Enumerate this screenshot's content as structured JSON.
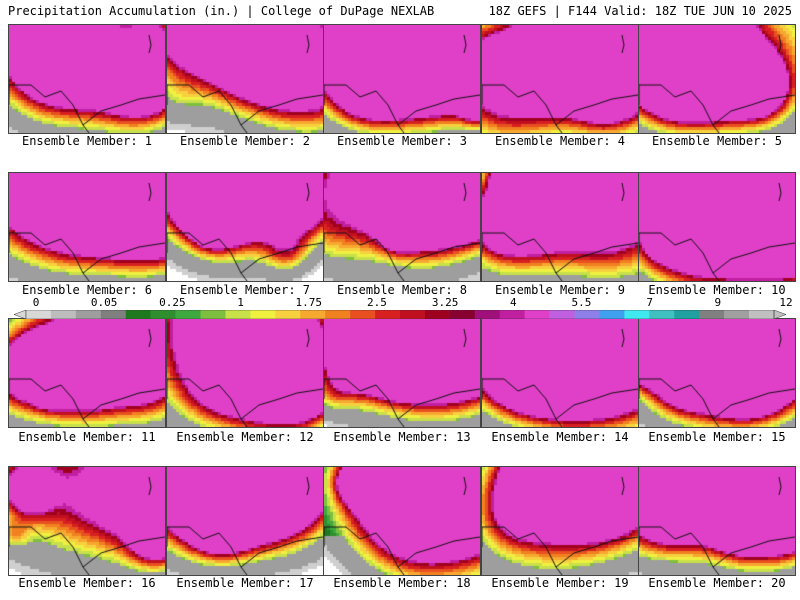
{
  "header": {
    "left_title": "Precipitation Accumulation (in.) | College of DuPage NEXLAB",
    "right_title": "18Z GEFS | F144 Valid: 18Z TUE JUN 10 2025"
  },
  "member_label_prefix": "Ensemble Member: ",
  "members": [
    {
      "id": "1",
      "label": "Ensemble Member: 1",
      "intensity": 0.55
    },
    {
      "id": "2",
      "label": "Ensemble Member: 2",
      "intensity": 0.4
    },
    {
      "id": "3",
      "label": "Ensemble Member: 3",
      "intensity": 0.8
    },
    {
      "id": "4",
      "label": "Ensemble Member: 4",
      "intensity": 0.7
    },
    {
      "id": "5",
      "label": "Ensemble Member: 5",
      "intensity": 0.75
    },
    {
      "id": "6",
      "label": "Ensemble Member: 6",
      "intensity": 0.8
    },
    {
      "id": "7",
      "label": "Ensemble Member: 7",
      "intensity": 0.5
    },
    {
      "id": "8",
      "label": "Ensemble Member: 8",
      "intensity": 0.78
    },
    {
      "id": "9",
      "label": "Ensemble Member: 9",
      "intensity": 0.78
    },
    {
      "id": "10",
      "label": "Ensemble Member: 10",
      "intensity": 0.8
    },
    {
      "id": "11",
      "label": "Ensemble Member: 11",
      "intensity": 0.6
    },
    {
      "id": "12",
      "label": "Ensemble Member: 12",
      "intensity": 0.68
    },
    {
      "id": "13",
      "label": "Ensemble Member: 13",
      "intensity": 0.7
    },
    {
      "id": "14",
      "label": "Ensemble Member: 14",
      "intensity": 0.62
    },
    {
      "id": "15",
      "label": "Ensemble Member: 15",
      "intensity": 0.9
    },
    {
      "id": "16",
      "label": "Ensemble Member: 16",
      "intensity": 0.62
    },
    {
      "id": "17",
      "label": "Ensemble Member: 17",
      "intensity": 0.55
    },
    {
      "id": "18",
      "label": "Ensemble Member: 18",
      "intensity": 0.55
    },
    {
      "id": "19",
      "label": "Ensemble Member: 19",
      "intensity": 0.5
    },
    {
      "id": "20",
      "label": "Ensemble Member: 20",
      "intensity": 0.65
    }
  ],
  "colorbar": {
    "tick_labels": [
      "0",
      "0.05",
      "0.25",
      "1",
      "1.75",
      "2.5",
      "3.25",
      "4",
      "5.5",
      "7",
      "9",
      "12"
    ],
    "colors": [
      "#d8d8d8",
      "#bdbdbd",
      "#9e9e9e",
      "#7f7f7f",
      "#1f7a1f",
      "#2f8f2f",
      "#3fa83f",
      "#7fbf3f",
      "#c8e04a",
      "#f0f040",
      "#f7d040",
      "#f7a830",
      "#f08020",
      "#e85020",
      "#d82020",
      "#c01020",
      "#a00020",
      "#880030",
      "#a0107a",
      "#c020a0",
      "#e040c8",
      "#c060e0",
      "#8f7fe8",
      "#40a0f0",
      "#40e8f0",
      "#40c0c0",
      "#20a0a0",
      "#808080",
      "#a0a0a0",
      "#c0c0c0"
    ]
  }
}
